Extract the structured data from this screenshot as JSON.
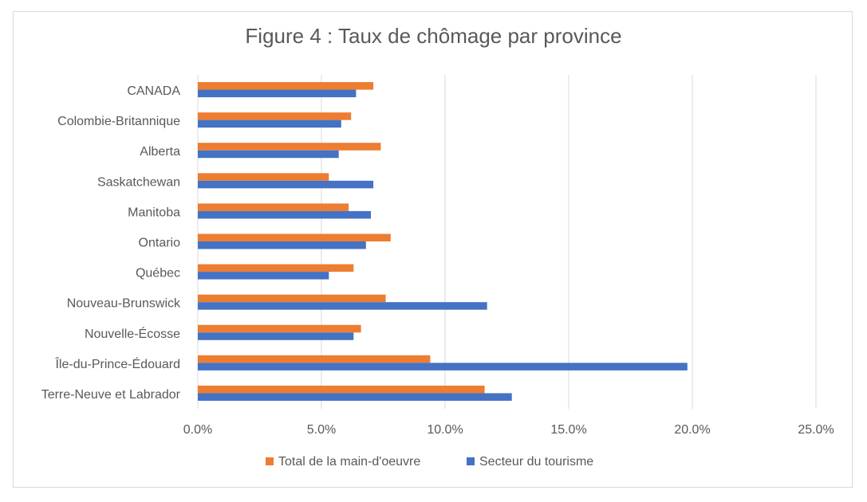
{
  "chart_data": {
    "type": "bar",
    "orientation": "horizontal",
    "title": "Figure 4 : Taux de chômage par province",
    "categories": [
      "CANADA",
      "Colombie-Britannique",
      "Alberta",
      "Saskatchewan",
      "Manitoba",
      "Ontario",
      "Québec",
      "Nouveau-Brunswick",
      "Nouvelle-Écosse",
      "Île-du-Prince-Édouard",
      "Terre-Neuve et Labrador"
    ],
    "series": [
      {
        "name": "Total de la main-d'oeuvre",
        "color": "#ED7D31",
        "values": [
          7.1,
          6.2,
          7.4,
          5.3,
          6.1,
          7.8,
          6.3,
          7.6,
          6.6,
          9.4,
          11.6
        ]
      },
      {
        "name": "Secteur du tourisme",
        "color": "#4472C4",
        "values": [
          6.4,
          5.8,
          5.7,
          7.1,
          7.0,
          6.8,
          5.3,
          11.7,
          6.3,
          19.8,
          12.7
        ]
      }
    ],
    "xlim": [
      0,
      25
    ],
    "xticks": [
      "0.0%",
      "5.0%",
      "10.0%",
      "15.0%",
      "20.0%",
      "25.0%"
    ],
    "grid": true,
    "legend_position": "bottom"
  }
}
